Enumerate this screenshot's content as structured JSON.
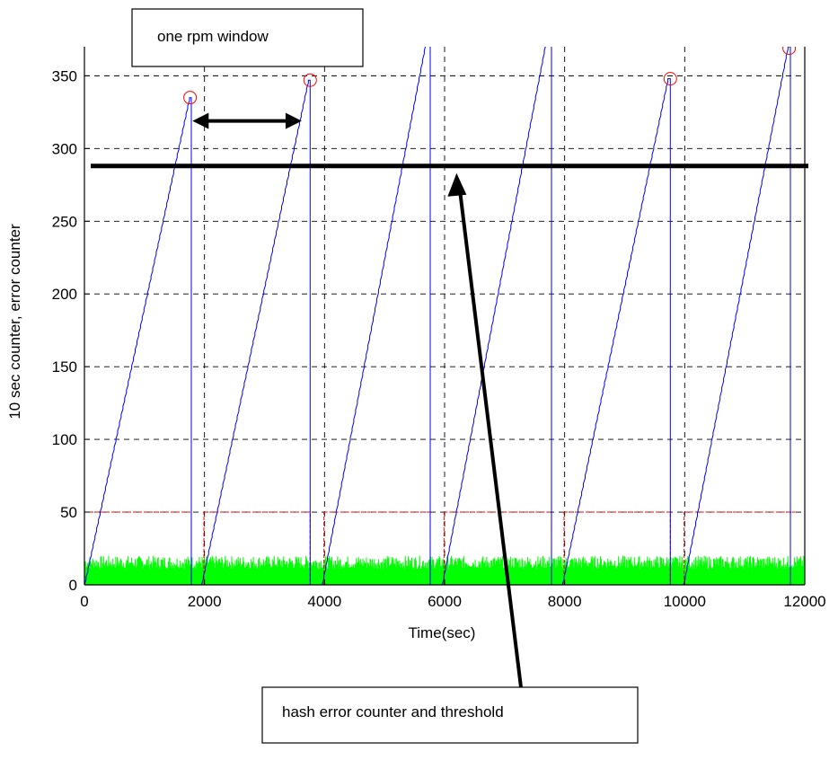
{
  "chart_data": {
    "type": "line",
    "title": "",
    "xlabel": "Time(sec)",
    "ylabel": "10 sec counter,  error counter",
    "xlim": [
      0,
      12000
    ],
    "ylim": [
      0,
      370
    ],
    "xticks": [
      0,
      2000,
      4000,
      6000,
      8000,
      10000,
      12000
    ],
    "yticks": [
      0,
      50,
      100,
      150,
      200,
      250,
      300,
      350
    ],
    "grid": true,
    "colors": {
      "counter": "#0000ff",
      "window": "#ff0000",
      "noise": "#00ff00",
      "threshold": "#000000"
    },
    "series": [
      {
        "style": "blue-sawtooth",
        "cycles": [
          {
            "start": 0,
            "peak_x": 1750,
            "peak_y": 335,
            "drop_x": 1780
          },
          {
            "start": 1950,
            "peak_x": 3730,
            "peak_y": 347,
            "drop_x": 3760
          },
          {
            "start": 3960,
            "peak_x": 5720,
            "peak_y": 380,
            "drop_x": 5760
          },
          {
            "start": 5960,
            "peak_x": 7720,
            "peak_y": 380,
            "drop_x": 7780
          },
          {
            "start": 7960,
            "peak_x": 9720,
            "peak_y": 348,
            "drop_x": 9760
          },
          {
            "start": 9980,
            "peak_x": 11720,
            "peak_y": 370,
            "drop_x": 11760
          }
        ]
      },
      {
        "style": "red-dashed-window",
        "level": 50,
        "gaps": [
          [
            1780,
            1990
          ],
          [
            3760,
            3990
          ],
          [
            5760,
            5990
          ],
          [
            7780,
            7990
          ],
          [
            9760,
            9990
          ]
        ]
      },
      {
        "style": "green-noise",
        "max": 20
      }
    ],
    "peak_markers": [
      {
        "x": 1760,
        "y": 335
      },
      {
        "x": 3760,
        "y": 347
      },
      {
        "x": 9760,
        "y": 348
      },
      {
        "x": 11740,
        "y": 369
      }
    ],
    "threshold": 288,
    "annotations": {
      "window_label": "one rpm window",
      "threshold_label": "hash error counter and threshold"
    }
  }
}
